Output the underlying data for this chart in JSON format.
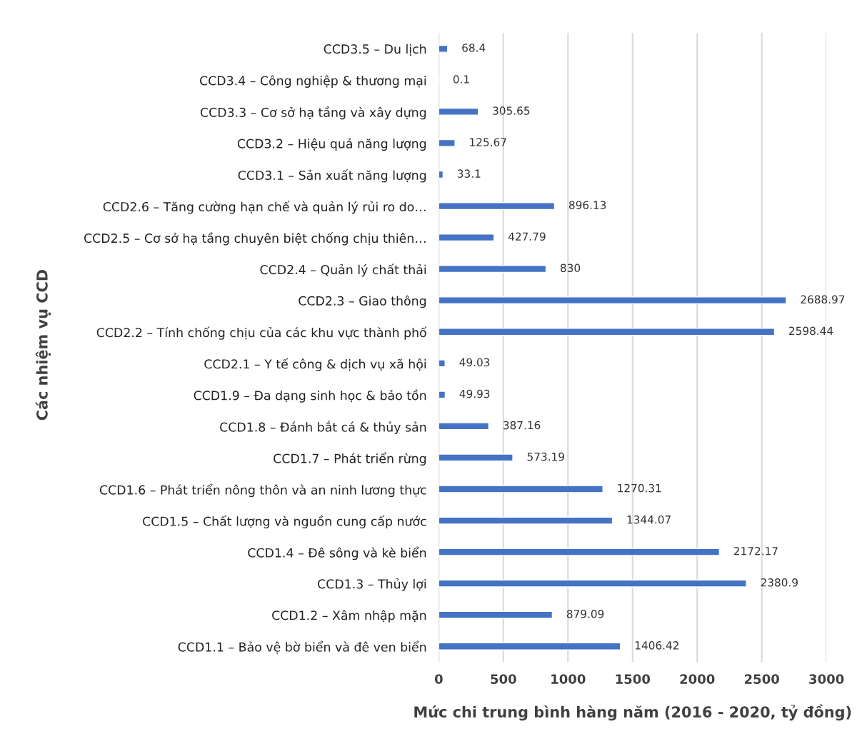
{
  "chart_data": {
    "type": "bar",
    "orientation": "horizontal",
    "xlabel": "Mức chi trung bình hàng năm (2016 - 2020, tỷ đồng)",
    "ylabel": "Các nhiệm vụ CCD",
    "categories": [
      "CCD3.5 – Du lịch",
      "CCD3.4 – Công nghiệp & thương mại",
      "CCD3.3 – Cơ sở hạ tầng và xây dựng",
      "CCD3.2 – Hiệu quả năng lượng",
      "CCD3.1 – Sản xuất năng lượng",
      "CCD2.6 – Tăng cường hạn chế và quản lý rủi ro do…",
      "CCD2.5 – Cơ sở hạ tầng chuyên biệt chống chịu thiên…",
      "CCD2.4 – Quản lý chất thải",
      "CCD2.3 – Giao thông",
      "CCD2.2 – Tính chống chịu của các khu vực thành phố",
      "CCD2.1 – Y tế công & dịch vụ xã hội",
      "CCD1.9 – Đa dạng sinh học & bảo tồn",
      "CCD1.8 – Đánh bắt cá & thủy sản",
      "CCD1.7 – Phát triển rừng",
      "CCD1.6 – Phát triển nông thôn và an ninh lương thực",
      "CCD1.5 – Chất lượng và nguồn cung cấp nước",
      "CCD1.4 – Đê sông và kè biển",
      "CCD1.3 – Thủy lợi",
      "CCD1.2 – Xâm nhập mặn",
      "CCD1.1 – Bảo vệ bờ biển và đê ven biển"
    ],
    "values": [
      68.4,
      0.1,
      305.65,
      125.67,
      33.1,
      896.13,
      427.79,
      830,
      2688.97,
      2598.44,
      49.03,
      49.93,
      387.16,
      573.19,
      1270.31,
      1344.07,
      2172.17,
      2380.9,
      879.09,
      1406.42
    ],
    "color": "#4472c4",
    "data_labels": true,
    "xlim": [
      0,
      3000
    ],
    "xticks": [
      0,
      500,
      1000,
      1500,
      2000,
      2500,
      3000
    ],
    "grid": "x",
    "legend": false
  }
}
